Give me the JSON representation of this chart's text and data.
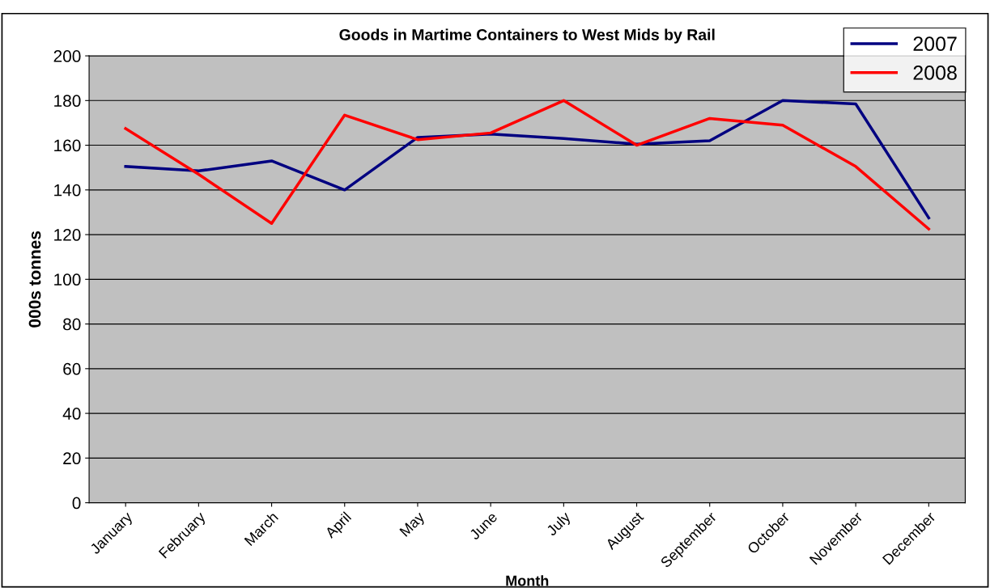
{
  "chart_data": {
    "type": "line",
    "title": "Goods in Martime Containers to West Mids by Rail",
    "xlabel": "Month",
    "ylabel": "000s tonnes",
    "categories": [
      "January",
      "February",
      "March",
      "April",
      "May",
      "June",
      "July",
      "August",
      "September",
      "October",
      "November",
      "December"
    ],
    "series": [
      {
        "name": "2007",
        "color": "#000080",
        "values": [
          150.5,
          148.5,
          153,
          140,
          163.5,
          165,
          163,
          160.5,
          162,
          180,
          178.5,
          127.5
        ]
      },
      {
        "name": "2008",
        "color": "#ff0000",
        "values": [
          167.5,
          147,
          125,
          173.5,
          162.5,
          165.5,
          180,
          160,
          172,
          169,
          150.5,
          122.5
        ]
      }
    ],
    "ylim": [
      0,
      200
    ],
    "yticks": [
      0,
      20,
      40,
      60,
      80,
      100,
      120,
      140,
      160,
      180,
      200
    ],
    "grid": "y",
    "legend": "top right",
    "marker": "none",
    "line_style": "solid"
  }
}
